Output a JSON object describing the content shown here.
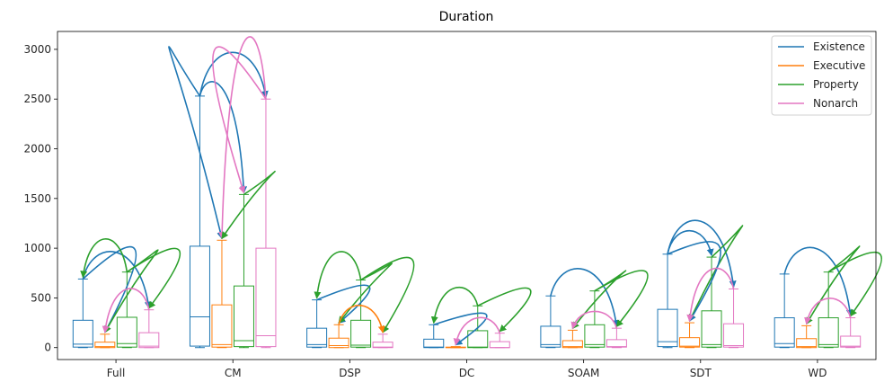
{
  "chart_data": {
    "type": "box",
    "title": "Duration",
    "xlabel": "",
    "ylabel": "",
    "ylim": [
      -120,
      3180
    ],
    "yticks": [
      0,
      500,
      1000,
      1500,
      2000,
      2500,
      3000
    ],
    "categories": [
      "Full",
      "CM",
      "DSP",
      "DC",
      "SOAM",
      "SDT",
      "WD"
    ],
    "legend_position": "top-right",
    "series": [
      {
        "name": "Existence",
        "color": "#1f77b4",
        "boxes": [
          {
            "whislo": 0,
            "q1": 5,
            "med": 35,
            "q3": 275,
            "whishi": 690
          },
          {
            "whislo": 0,
            "q1": 15,
            "med": 310,
            "q3": 1020,
            "whishi": 2530
          },
          {
            "whislo": 0,
            "q1": 5,
            "med": 30,
            "q3": 195,
            "whishi": 480
          },
          {
            "whislo": 0,
            "q1": 0,
            "med": 5,
            "q3": 85,
            "whishi": 230
          },
          {
            "whislo": 0,
            "q1": 5,
            "med": 30,
            "q3": 215,
            "whishi": 520
          },
          {
            "whislo": 0,
            "q1": 10,
            "med": 60,
            "q3": 385,
            "whishi": 940
          },
          {
            "whislo": 0,
            "q1": 5,
            "med": 40,
            "q3": 300,
            "whishi": 740
          }
        ]
      },
      {
        "name": "Executive",
        "color": "#ff7f0e",
        "boxes": [
          {
            "whislo": 0,
            "q1": 0,
            "med": 10,
            "q3": 55,
            "whishi": 135
          },
          {
            "whislo": 0,
            "q1": 5,
            "med": 30,
            "q3": 430,
            "whishi": 1080
          },
          {
            "whislo": 0,
            "q1": 0,
            "med": 20,
            "q3": 95,
            "whishi": 230
          },
          {
            "whislo": 0,
            "q1": 0,
            "med": 0,
            "q3": 5,
            "whishi": 10
          },
          {
            "whislo": 0,
            "q1": 0,
            "med": 10,
            "q3": 70,
            "whishi": 175
          },
          {
            "whislo": 0,
            "q1": 5,
            "med": 15,
            "q3": 100,
            "whishi": 250
          },
          {
            "whislo": 0,
            "q1": 0,
            "med": 10,
            "q3": 90,
            "whishi": 220
          }
        ]
      },
      {
        "name": "Property",
        "color": "#2ca02c",
        "boxes": [
          {
            "whislo": 0,
            "q1": 5,
            "med": 40,
            "q3": 305,
            "whishi": 760
          },
          {
            "whislo": 0,
            "q1": 10,
            "med": 70,
            "q3": 620,
            "whishi": 1540
          },
          {
            "whislo": 0,
            "q1": 5,
            "med": 25,
            "q3": 275,
            "whishi": 680
          },
          {
            "whislo": 0,
            "q1": 0,
            "med": 5,
            "q3": 170,
            "whishi": 420
          },
          {
            "whislo": 0,
            "q1": 5,
            "med": 30,
            "q3": 230,
            "whishi": 570
          },
          {
            "whislo": 0,
            "q1": 5,
            "med": 30,
            "q3": 370,
            "whishi": 910
          },
          {
            "whislo": 0,
            "q1": 5,
            "med": 30,
            "q3": 300,
            "whishi": 760
          }
        ]
      },
      {
        "name": "Nonarch",
        "color": "#e377c2",
        "boxes": [
          {
            "whislo": 0,
            "q1": 0,
            "med": 15,
            "q3": 150,
            "whishi": 380
          },
          {
            "whislo": 0,
            "q1": 10,
            "med": 120,
            "q3": 1000,
            "whishi": 2500
          },
          {
            "whislo": 0,
            "q1": 0,
            "med": 5,
            "q3": 55,
            "whishi": 135
          },
          {
            "whislo": 0,
            "q1": 0,
            "med": 0,
            "q3": 60,
            "whishi": 145
          },
          {
            "whislo": 0,
            "q1": 5,
            "med": 10,
            "q3": 80,
            "whishi": 195
          },
          {
            "whislo": 0,
            "q1": 5,
            "med": 20,
            "q3": 240,
            "whishi": 590
          },
          {
            "whislo": 0,
            "q1": 5,
            "med": 15,
            "q3": 115,
            "whishi": 300
          }
        ]
      }
    ],
    "transitions": [
      {
        "group": "Full",
        "from": "Existence",
        "to": "Executive",
        "color": "#1f77b4",
        "bow": 55
      },
      {
        "group": "Full",
        "from": "Existence",
        "to": "Nonarch",
        "color": "#1f77b4",
        "bow": 45
      },
      {
        "group": "Full",
        "from": "Property",
        "to": "Existence",
        "color": "#2ca02c",
        "bow": 50
      },
      {
        "group": "Full",
        "from": "Property",
        "to": "Executive",
        "color": "#2ca02c",
        "bow": 40
      },
      {
        "group": "Full",
        "from": "Property",
        "to": "Nonarch",
        "color": "#2ca02c",
        "bow": 40
      },
      {
        "group": "Full",
        "from": "Nonarch",
        "to": "Executive",
        "color": "#e377c2",
        "bow": 35
      },
      {
        "group": "CM",
        "from": "Existence",
        "to": "Nonarch",
        "color": "#1f77b4",
        "bow": 65
      },
      {
        "group": "CM",
        "from": "Existence",
        "to": "Executive",
        "color": "#1f77b4",
        "bow": 90
      },
      {
        "group": "CM",
        "from": "Existence",
        "to": "Property",
        "color": "#1f77b4",
        "bow": 30
      },
      {
        "group": "CM",
        "from": "Nonarch",
        "to": "Executive",
        "color": "#e377c2",
        "bow": 110
      },
      {
        "group": "CM",
        "from": "Nonarch",
        "to": "Property",
        "color": "#e377c2",
        "bow": 90
      },
      {
        "group": "CM",
        "from": "Property",
        "to": "Executive",
        "color": "#2ca02c",
        "bow": 40
      },
      {
        "group": "DSP",
        "from": "Existence",
        "to": "Executive",
        "color": "#1f77b4",
        "bow": 25
      },
      {
        "group": "DSP",
        "from": "Property",
        "to": "Existence",
        "color": "#2ca02c",
        "bow": 45
      },
      {
        "group": "DSP",
        "from": "Property",
        "to": "Executive",
        "color": "#2ca02c",
        "bow": 30
      },
      {
        "group": "DSP",
        "from": "Property",
        "to": "Nonarch",
        "color": "#2ca02c",
        "bow": 40
      },
      {
        "group": "DSP",
        "from": "Executive",
        "to": "Nonarch",
        "color": "#ff7f0e",
        "bow": 30
      },
      {
        "group": "DC",
        "from": "Existence",
        "to": "Executive",
        "color": "#1f77b4",
        "bow": 20
      },
      {
        "group": "DC",
        "from": "Property",
        "to": "Existence",
        "color": "#2ca02c",
        "bow": 30
      },
      {
        "group": "DC",
        "from": "Property",
        "to": "Nonarch",
        "color": "#2ca02c",
        "bow": 30
      },
      {
        "group": "DC",
        "from": "Nonarch",
        "to": "Executive",
        "color": "#e377c2",
        "bow": 25
      },
      {
        "group": "SOAM",
        "from": "Existence",
        "to": "Nonarch",
        "color": "#1f77b4",
        "bow": 45
      },
      {
        "group": "SOAM",
        "from": "Property",
        "to": "Executive",
        "color": "#2ca02c",
        "bow": 35
      },
      {
        "group": "SOAM",
        "from": "Property",
        "to": "Nonarch",
        "color": "#2ca02c",
        "bow": 35
      },
      {
        "group": "SOAM",
        "from": "Nonarch",
        "to": "Executive",
        "color": "#e377c2",
        "bow": 25
      },
      {
        "group": "SDT",
        "from": "Existence",
        "to": "Property",
        "color": "#1f77b4",
        "bow": 35
      },
      {
        "group": "SDT",
        "from": "Existence",
        "to": "Nonarch",
        "color": "#1f77b4",
        "bow": 55
      },
      {
        "group": "SDT",
        "from": "Property",
        "to": "Executive",
        "color": "#2ca02c",
        "bow": 55
      },
      {
        "group": "SDT",
        "from": "Existence",
        "to": "Executive",
        "color": "#1f77b4",
        "bow": 25
      },
      {
        "group": "SDT",
        "from": "Nonarch",
        "to": "Executive",
        "color": "#e377c2",
        "bow": 35
      },
      {
        "group": "WD",
        "from": "Existence",
        "to": "Nonarch",
        "color": "#1f77b4",
        "bow": 45
      },
      {
        "group": "WD",
        "from": "Property",
        "to": "Executive",
        "color": "#2ca02c",
        "bow": 45
      },
      {
        "group": "WD",
        "from": "Property",
        "to": "Nonarch",
        "color": "#2ca02c",
        "bow": 35
      },
      {
        "group": "WD",
        "from": "Nonarch",
        "to": "Executive",
        "color": "#e377c2",
        "bow": 30
      }
    ]
  }
}
